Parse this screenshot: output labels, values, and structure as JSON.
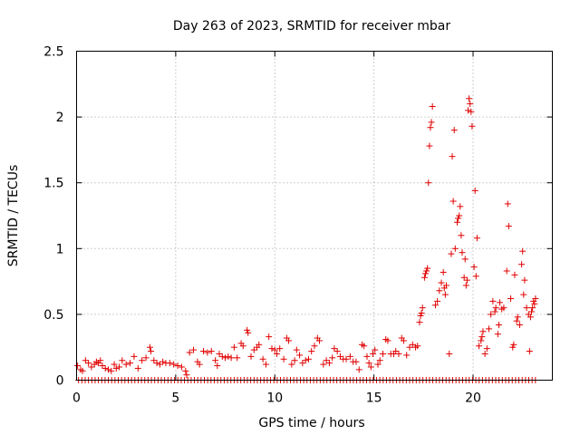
{
  "chart_data": {
    "type": "scatter",
    "title": "Day 263 of 2023, SRMTID for receiver mbar",
    "xlabel": "GPS time / hours",
    "ylabel": "SRMTID / TECUs",
    "xlim": [
      0,
      24
    ],
    "ylim": [
      0,
      2.5
    ],
    "xticks": [
      0,
      5,
      10,
      15,
      20
    ],
    "xtick_labels": [
      "0",
      "5",
      "10",
      "15",
      "20"
    ],
    "yticks": [
      0,
      0.5,
      1,
      1.5,
      2,
      2.5
    ],
    "ytick_labels": [
      "0",
      "0.5",
      "1",
      "1.5",
      "2",
      "2.5"
    ],
    "grid": true,
    "marker": "plus",
    "color": "#e00000",
    "series": [
      {
        "name": "SRMTID",
        "points": [
          [
            0.05,
            0.11
          ],
          [
            0.2,
            0.08
          ],
          [
            0.3,
            0.07
          ],
          [
            0.45,
            0.15
          ],
          [
            0.6,
            0.13
          ],
          [
            0.75,
            0.1
          ],
          [
            0.9,
            0.12
          ],
          [
            1.0,
            0.14
          ],
          [
            1.1,
            0.13
          ],
          [
            1.2,
            0.15
          ],
          [
            1.3,
            0.11
          ],
          [
            1.45,
            0.09
          ],
          [
            1.6,
            0.08
          ],
          [
            1.75,
            0.07
          ],
          [
            1.9,
            0.12
          ],
          [
            2.0,
            0.09
          ],
          [
            2.15,
            0.1
          ],
          [
            2.3,
            0.15
          ],
          [
            2.5,
            0.12
          ],
          [
            2.7,
            0.13
          ],
          [
            2.9,
            0.18
          ],
          [
            3.1,
            0.09
          ],
          [
            3.3,
            0.15
          ],
          [
            3.5,
            0.17
          ],
          [
            3.7,
            0.25
          ],
          [
            3.75,
            0.22
          ],
          [
            3.9,
            0.15
          ],
          [
            4.05,
            0.13
          ],
          [
            4.2,
            0.12
          ],
          [
            4.35,
            0.14
          ],
          [
            4.5,
            0.13
          ],
          [
            4.7,
            0.13
          ],
          [
            4.9,
            0.12
          ],
          [
            5.1,
            0.11
          ],
          [
            5.3,
            0.1
          ],
          [
            5.5,
            0.07
          ],
          [
            5.55,
            0.04
          ],
          [
            5.7,
            0.21
          ],
          [
            5.9,
            0.23
          ],
          [
            6.1,
            0.14
          ],
          [
            6.2,
            0.12
          ],
          [
            6.4,
            0.22
          ],
          [
            6.6,
            0.21
          ],
          [
            6.8,
            0.22
          ],
          [
            7.0,
            0.15
          ],
          [
            7.1,
            0.11
          ],
          [
            7.2,
            0.2
          ],
          [
            7.35,
            0.18
          ],
          [
            7.5,
            0.17
          ],
          [
            7.65,
            0.18
          ],
          [
            7.8,
            0.17
          ],
          [
            7.95,
            0.25
          ],
          [
            8.1,
            0.17
          ],
          [
            8.3,
            0.28
          ],
          [
            8.4,
            0.26
          ],
          [
            8.6,
            0.38
          ],
          [
            8.65,
            0.36
          ],
          [
            8.8,
            0.18
          ],
          [
            8.95,
            0.23
          ],
          [
            9.1,
            0.25
          ],
          [
            9.2,
            0.27
          ],
          [
            9.4,
            0.16
          ],
          [
            9.55,
            0.12
          ],
          [
            9.7,
            0.33
          ],
          [
            9.85,
            0.24
          ],
          [
            10.0,
            0.23
          ],
          [
            10.1,
            0.2
          ],
          [
            10.25,
            0.24
          ],
          [
            10.45,
            0.16
          ],
          [
            10.6,
            0.32
          ],
          [
            10.7,
            0.3
          ],
          [
            10.85,
            0.12
          ],
          [
            11.0,
            0.15
          ],
          [
            11.1,
            0.23
          ],
          [
            11.25,
            0.19
          ],
          [
            11.4,
            0.13
          ],
          [
            11.55,
            0.15
          ],
          [
            11.7,
            0.16
          ],
          [
            11.85,
            0.22
          ],
          [
            12.0,
            0.26
          ],
          [
            12.15,
            0.32
          ],
          [
            12.25,
            0.3
          ],
          [
            12.45,
            0.12
          ],
          [
            12.6,
            0.15
          ],
          [
            12.75,
            0.13
          ],
          [
            12.9,
            0.17
          ],
          [
            13.0,
            0.24
          ],
          [
            13.15,
            0.22
          ],
          [
            13.3,
            0.18
          ],
          [
            13.45,
            0.16
          ],
          [
            13.6,
            0.16
          ],
          [
            13.8,
            0.18
          ],
          [
            13.95,
            0.14
          ],
          [
            14.1,
            0.14
          ],
          [
            14.25,
            0.08
          ],
          [
            14.4,
            0.27
          ],
          [
            14.5,
            0.26
          ],
          [
            14.65,
            0.18
          ],
          [
            14.75,
            0.13
          ],
          [
            14.85,
            0.1
          ],
          [
            14.95,
            0.2
          ],
          [
            15.05,
            0.23
          ],
          [
            15.2,
            0.12
          ],
          [
            15.3,
            0.15
          ],
          [
            15.45,
            0.2
          ],
          [
            15.6,
            0.31
          ],
          [
            15.7,
            0.3
          ],
          [
            15.85,
            0.2
          ],
          [
            16.0,
            0.2
          ],
          [
            16.1,
            0.22
          ],
          [
            16.25,
            0.2
          ],
          [
            16.4,
            0.32
          ],
          [
            16.5,
            0.3
          ],
          [
            16.65,
            0.19
          ],
          [
            16.8,
            0.25
          ],
          [
            16.95,
            0.27
          ],
          [
            17.1,
            0.25
          ],
          [
            17.2,
            0.26
          ],
          [
            17.3,
            0.44
          ],
          [
            17.35,
            0.49
          ],
          [
            17.4,
            0.51
          ],
          [
            17.45,
            0.55
          ],
          [
            17.55,
            0.78
          ],
          [
            17.6,
            0.81
          ],
          [
            17.65,
            0.83
          ],
          [
            17.7,
            0.85
          ],
          [
            17.75,
            1.5
          ],
          [
            17.8,
            1.78
          ],
          [
            17.85,
            1.92
          ],
          [
            17.9,
            1.96
          ],
          [
            17.95,
            2.08
          ],
          [
            18.1,
            0.57
          ],
          [
            18.2,
            0.6
          ],
          [
            18.3,
            0.68
          ],
          [
            18.4,
            0.74
          ],
          [
            18.5,
            0.82
          ],
          [
            18.55,
            0.7
          ],
          [
            18.6,
            0.65
          ],
          [
            18.65,
            0.72
          ],
          [
            18.8,
            0.2
          ],
          [
            18.9,
            0.96
          ],
          [
            18.95,
            1.7
          ],
          [
            19.0,
            1.36
          ],
          [
            19.05,
            1.9
          ],
          [
            19.1,
            1.0
          ],
          [
            19.2,
            1.2
          ],
          [
            19.25,
            1.23
          ],
          [
            19.3,
            1.25
          ],
          [
            19.35,
            1.32
          ],
          [
            19.4,
            1.1
          ],
          [
            19.45,
            0.97
          ],
          [
            19.55,
            0.78
          ],
          [
            19.6,
            0.92
          ],
          [
            19.65,
            0.72
          ],
          [
            19.7,
            0.76
          ],
          [
            19.75,
            2.05
          ],
          [
            19.8,
            2.14
          ],
          [
            19.85,
            2.1
          ],
          [
            19.9,
            2.04
          ],
          [
            19.95,
            1.93
          ],
          [
            20.05,
            0.86
          ],
          [
            20.1,
            1.44
          ],
          [
            20.15,
            0.79
          ],
          [
            20.2,
            1.08
          ],
          [
            20.3,
            0.26
          ],
          [
            20.4,
            0.3
          ],
          [
            20.45,
            0.33
          ],
          [
            20.5,
            0.37
          ],
          [
            20.6,
            0.2
          ],
          [
            20.7,
            0.24
          ],
          [
            20.8,
            0.39
          ],
          [
            20.9,
            0.5
          ],
          [
            21.0,
            0.6
          ],
          [
            21.1,
            0.52
          ],
          [
            21.15,
            0.55
          ],
          [
            21.25,
            0.35
          ],
          [
            21.3,
            0.42
          ],
          [
            21.35,
            0.59
          ],
          [
            21.45,
            0.54
          ],
          [
            21.55,
            0.55
          ],
          [
            21.7,
            0.83
          ],
          [
            21.75,
            1.34
          ],
          [
            21.8,
            1.17
          ],
          [
            21.9,
            0.62
          ],
          [
            22.0,
            0.25
          ],
          [
            22.05,
            0.27
          ],
          [
            22.1,
            0.8
          ],
          [
            22.2,
            0.45
          ],
          [
            22.25,
            0.48
          ],
          [
            22.35,
            0.42
          ],
          [
            22.45,
            0.88
          ],
          [
            22.5,
            0.98
          ],
          [
            22.55,
            0.65
          ],
          [
            22.6,
            0.76
          ],
          [
            22.7,
            0.55
          ],
          [
            22.8,
            0.5
          ],
          [
            22.85,
            0.22
          ],
          [
            22.9,
            0.48
          ],
          [
            22.95,
            0.52
          ],
          [
            23.0,
            0.55
          ],
          [
            23.05,
            0.6
          ],
          [
            23.1,
            0.58
          ],
          [
            23.15,
            0.62
          ]
        ]
      }
    ],
    "zero_baseline": {
      "y": 0,
      "x_start": 0.1,
      "x_end": 23.2,
      "step": 0.167
    }
  }
}
